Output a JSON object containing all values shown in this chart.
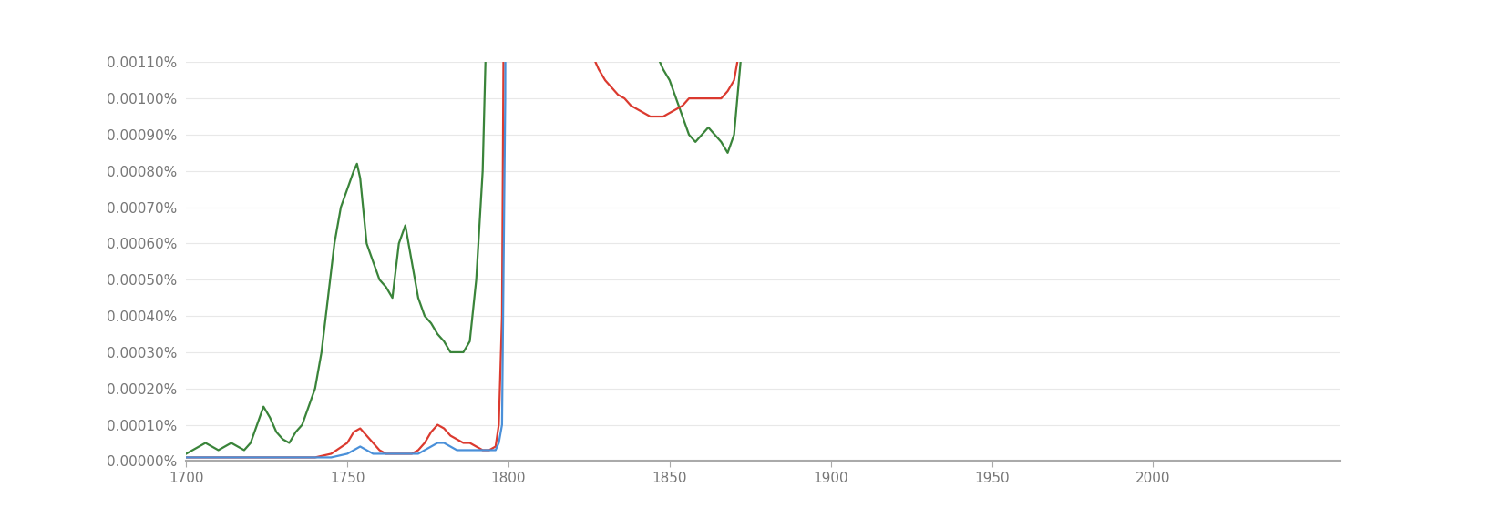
{
  "xlim": [
    1700,
    2008
  ],
  "ylim": [
    0,
    1.1e-05
  ],
  "ytick_values": [
    0.0,
    1e-06,
    2e-06,
    3e-06,
    4e-06,
    5e-06,
    6e-06,
    7e-06,
    8e-06,
    9e-06,
    1e-05,
    1.1e-05
  ],
  "ytick_labels": [
    "0.00000%",
    "0.00010%",
    "0.00020%",
    "0.00030%",
    "0.00040%",
    "0.00050%",
    "0.00060%",
    "0.00070%",
    "0.00080%",
    "0.00090%",
    "0.00100%",
    "0.00110%"
  ],
  "xticks": [
    1700,
    1750,
    1800,
    1850,
    1900,
    1950,
    2000
  ],
  "line_colors": {
    "vaccine": "#db3a2f",
    "vaccination": "#4a90d9",
    "inoculation": "#3a843a"
  },
  "line_width": 1.6,
  "label_fontsize": 12,
  "background_color": "#ffffff",
  "grid_color": "#e8e8e8",
  "axis_color": "#aaaaaa",
  "tick_color": "#777777",
  "tick_fontsize": 11
}
